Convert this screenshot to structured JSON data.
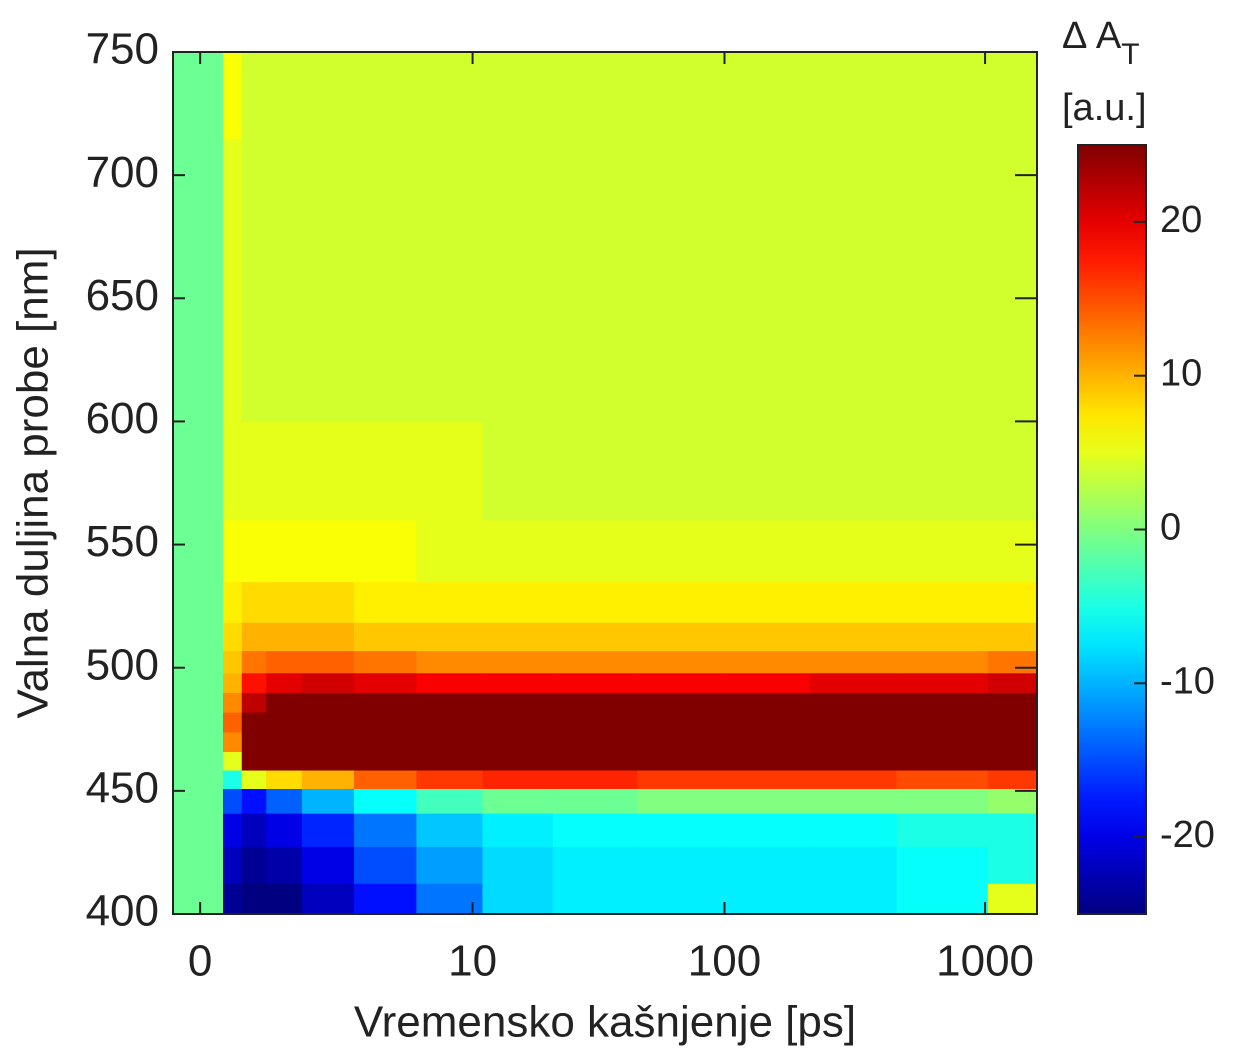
{
  "chart_data": {
    "type": "heatmap",
    "xlabel": "Vremensko kašnjenje [ps]",
    "ylabel": "Valna duljina probe [nm]",
    "colorbar_label": "Δ A",
    "colorbar_label_sub": "T",
    "colorbar_unit": "[a.u.]",
    "colormap": "jet",
    "xscale": "symlog",
    "xlim": [
      -0.27,
      1580
    ],
    "ylim": [
      400,
      750
    ],
    "clim": [
      -25,
      25
    ],
    "xticks": [
      0,
      10,
      100,
      1000
    ],
    "yticks": [
      400,
      450,
      500,
      550,
      600,
      650,
      700,
      750
    ],
    "cticks": [
      -20,
      -10,
      0,
      10,
      20
    ],
    "x": [
      -0.2,
      0.15,
      0.3,
      0.6,
      1,
      2,
      4,
      8,
      15,
      30,
      70,
      150,
      300,
      700,
      1500
    ],
    "y": [
      405,
      420,
      435,
      447,
      455,
      462,
      470,
      478,
      486,
      494,
      502,
      512,
      525,
      545,
      575,
      625,
      690,
      740
    ],
    "z": [
      [
        -1,
        -1,
        -24,
        -25,
        -25,
        -22,
        -18,
        -13,
        -8,
        -7,
        -7,
        -7,
        -7,
        -6,
        5
      ],
      [
        -1,
        -1,
        -22,
        -24,
        -23,
        -20,
        -15,
        -11,
        -8,
        -7,
        -7,
        -7,
        -7,
        -6,
        -5
      ],
      [
        -1,
        -1,
        -20,
        -22,
        -20,
        -17,
        -13,
        -9,
        -7,
        -6,
        -6,
        -6,
        -6,
        -5,
        -5
      ],
      [
        -1,
        -1,
        -15,
        -18,
        -14,
        -10,
        -6,
        -3,
        -1,
        -1,
        0,
        0,
        0,
        0,
        1
      ],
      [
        -1,
        -1,
        -5,
        5,
        8,
        10,
        14,
        16,
        17,
        17,
        16,
        16,
        16,
        15,
        16
      ],
      [
        -1,
        -1,
        5,
        25,
        25,
        25,
        25,
        25,
        25,
        25,
        25,
        25,
        25,
        25,
        25
      ],
      [
        -1,
        -1,
        12,
        25,
        25,
        25,
        25,
        25,
        25,
        25,
        25,
        25,
        25,
        25,
        25
      ],
      [
        -1,
        -1,
        14,
        25,
        25,
        25,
        25,
        25,
        25,
        25,
        25,
        25,
        25,
        25,
        25
      ],
      [
        -1,
        -1,
        12,
        22,
        25,
        25,
        25,
        25,
        25,
        25,
        25,
        25,
        25,
        25,
        25
      ],
      [
        -1,
        -1,
        10,
        18,
        20,
        21,
        20,
        19,
        19,
        19,
        19,
        19,
        20,
        20,
        21
      ],
      [
        -1,
        -1,
        9,
        13,
        14,
        14,
        13,
        12,
        12,
        12,
        12,
        12,
        12,
        12,
        13
      ],
      [
        -1,
        -1,
        8,
        10,
        10,
        10,
        9,
        9,
        9,
        9,
        9,
        9,
        9,
        9,
        9
      ],
      [
        -1,
        -1,
        7,
        8,
        8,
        8,
        7,
        7,
        7,
        7,
        7,
        7,
        7,
        7,
        7
      ],
      [
        -1,
        -1,
        6,
        6,
        6,
        6,
        6,
        5,
        5,
        5,
        5,
        5,
        5,
        5,
        5
      ],
      [
        -1,
        -1,
        5,
        5,
        5,
        5,
        5,
        5,
        4,
        4,
        4,
        4,
        4,
        4,
        4
      ],
      [
        -1,
        -1,
        5,
        4,
        4,
        4,
        4,
        4,
        4,
        4,
        4,
        4,
        4,
        4,
        4
      ],
      [
        -1,
        -1,
        5,
        4,
        4,
        4,
        4,
        4,
        4,
        4,
        4,
        4,
        4,
        4,
        4
      ],
      [
        -1,
        -1,
        6,
        4,
        4,
        4,
        4,
        4,
        4,
        4,
        4,
        4,
        4,
        4,
        4
      ]
    ]
  }
}
